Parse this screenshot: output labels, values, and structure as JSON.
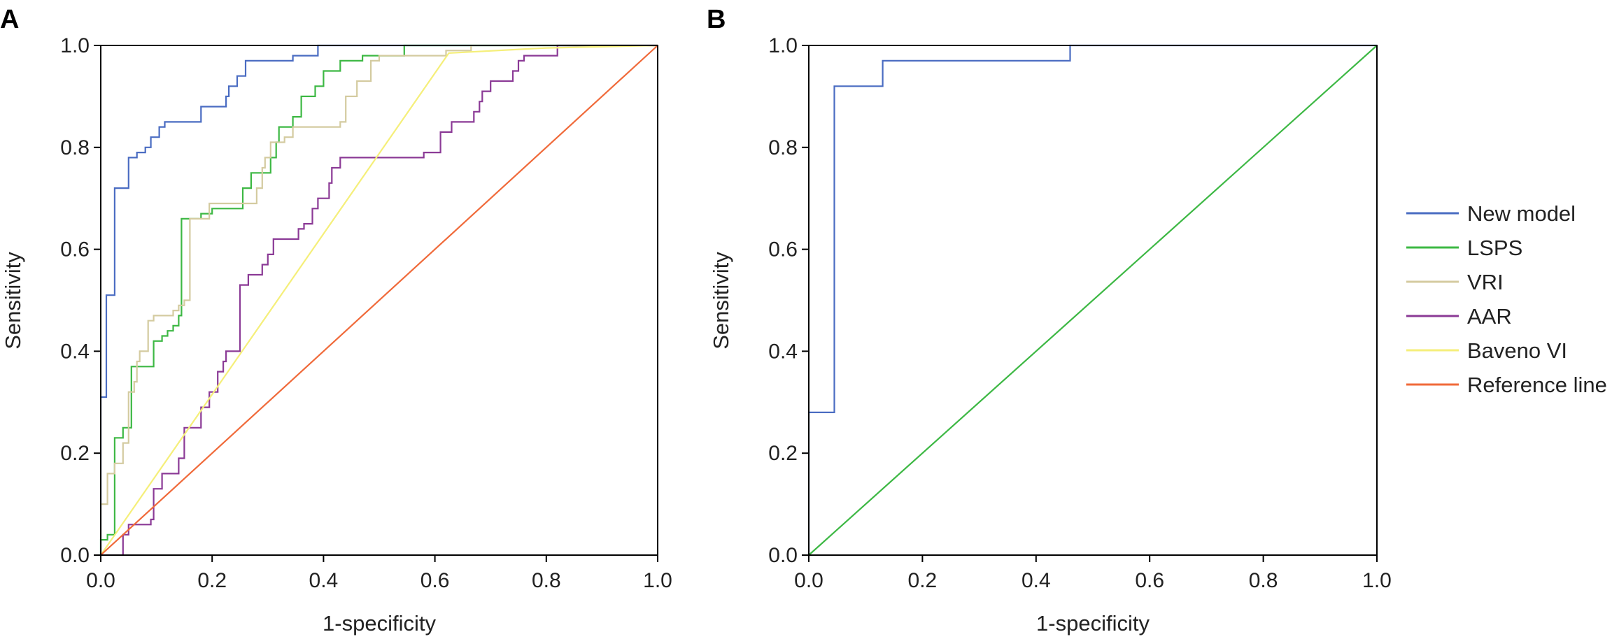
{
  "chart_data": [
    {
      "panel": "A",
      "type": "line",
      "xlabel": "1-specificity",
      "ylabel": "Sensitivity",
      "xlim": [
        0,
        1
      ],
      "ylim": [
        0,
        1
      ],
      "xticks": [
        "0.0",
        "0.2",
        "0.4",
        "0.6",
        "0.8",
        "1.0"
      ],
      "yticks": [
        "0.0",
        "0.2",
        "0.4",
        "0.6",
        "0.8",
        "1.0"
      ],
      "grid": false,
      "series": [
        {
          "name": "New model",
          "color": "#4a6cc2",
          "points": [
            [
              0,
              0
            ],
            [
              0,
              0.31
            ],
            [
              0.01,
              0.31
            ],
            [
              0.01,
              0.51
            ],
            [
              0.025,
              0.51
            ],
            [
              0.025,
              0.72
            ],
            [
              0.05,
              0.72
            ],
            [
              0.05,
              0.78
            ],
            [
              0.065,
              0.78
            ],
            [
              0.065,
              0.79
            ],
            [
              0.08,
              0.79
            ],
            [
              0.08,
              0.8
            ],
            [
              0.09,
              0.8
            ],
            [
              0.09,
              0.82
            ],
            [
              0.105,
              0.82
            ],
            [
              0.105,
              0.84
            ],
            [
              0.115,
              0.84
            ],
            [
              0.115,
              0.85
            ],
            [
              0.18,
              0.85
            ],
            [
              0.18,
              0.88
            ],
            [
              0.225,
              0.88
            ],
            [
              0.225,
              0.9
            ],
            [
              0.23,
              0.9
            ],
            [
              0.23,
              0.92
            ],
            [
              0.245,
              0.92
            ],
            [
              0.245,
              0.94
            ],
            [
              0.26,
              0.94
            ],
            [
              0.26,
              0.97
            ],
            [
              0.345,
              0.97
            ],
            [
              0.345,
              0.98
            ],
            [
              0.39,
              0.98
            ],
            [
              0.39,
              1.0
            ],
            [
              1.0,
              1.0
            ]
          ]
        },
        {
          "name": "LSPS",
          "color": "#3db844",
          "points": [
            [
              0,
              0
            ],
            [
              0,
              0.03
            ],
            [
              0.012,
              0.03
            ],
            [
              0.012,
              0.04
            ],
            [
              0.025,
              0.04
            ],
            [
              0.025,
              0.23
            ],
            [
              0.04,
              0.23
            ],
            [
              0.04,
              0.25
            ],
            [
              0.055,
              0.25
            ],
            [
              0.055,
              0.37
            ],
            [
              0.095,
              0.37
            ],
            [
              0.095,
              0.42
            ],
            [
              0.11,
              0.42
            ],
            [
              0.11,
              0.43
            ],
            [
              0.12,
              0.43
            ],
            [
              0.12,
              0.44
            ],
            [
              0.13,
              0.44
            ],
            [
              0.13,
              0.45
            ],
            [
              0.14,
              0.45
            ],
            [
              0.14,
              0.47
            ],
            [
              0.145,
              0.47
            ],
            [
              0.145,
              0.66
            ],
            [
              0.18,
              0.66
            ],
            [
              0.18,
              0.67
            ],
            [
              0.2,
              0.67
            ],
            [
              0.2,
              0.68
            ],
            [
              0.255,
              0.68
            ],
            [
              0.255,
              0.72
            ],
            [
              0.27,
              0.72
            ],
            [
              0.27,
              0.75
            ],
            [
              0.305,
              0.75
            ],
            [
              0.305,
              0.78
            ],
            [
              0.315,
              0.78
            ],
            [
              0.315,
              0.81
            ],
            [
              0.32,
              0.81
            ],
            [
              0.32,
              0.84
            ],
            [
              0.345,
              0.84
            ],
            [
              0.345,
              0.86
            ],
            [
              0.36,
              0.86
            ],
            [
              0.36,
              0.9
            ],
            [
              0.385,
              0.9
            ],
            [
              0.385,
              0.92
            ],
            [
              0.4,
              0.92
            ],
            [
              0.4,
              0.95
            ],
            [
              0.43,
              0.95
            ],
            [
              0.43,
              0.97
            ],
            [
              0.47,
              0.97
            ],
            [
              0.47,
              0.98
            ],
            [
              0.545,
              0.98
            ],
            [
              0.545,
              1.0
            ],
            [
              1.0,
              1.0
            ]
          ]
        },
        {
          "name": "VRI",
          "color": "#d4cba0",
          "points": [
            [
              0,
              0
            ],
            [
              0,
              0.1
            ],
            [
              0.012,
              0.1
            ],
            [
              0.012,
              0.16
            ],
            [
              0.025,
              0.16
            ],
            [
              0.025,
              0.18
            ],
            [
              0.04,
              0.18
            ],
            [
              0.04,
              0.22
            ],
            [
              0.05,
              0.22
            ],
            [
              0.05,
              0.32
            ],
            [
              0.06,
              0.32
            ],
            [
              0.06,
              0.34
            ],
            [
              0.065,
              0.34
            ],
            [
              0.065,
              0.38
            ],
            [
              0.07,
              0.38
            ],
            [
              0.07,
              0.4
            ],
            [
              0.085,
              0.4
            ],
            [
              0.085,
              0.46
            ],
            [
              0.095,
              0.46
            ],
            [
              0.095,
              0.47
            ],
            [
              0.13,
              0.47
            ],
            [
              0.13,
              0.48
            ],
            [
              0.14,
              0.48
            ],
            [
              0.14,
              0.49
            ],
            [
              0.15,
              0.49
            ],
            [
              0.15,
              0.5
            ],
            [
              0.16,
              0.5
            ],
            [
              0.16,
              0.66
            ],
            [
              0.195,
              0.66
            ],
            [
              0.195,
              0.69
            ],
            [
              0.28,
              0.69
            ],
            [
              0.28,
              0.72
            ],
            [
              0.29,
              0.72
            ],
            [
              0.29,
              0.76
            ],
            [
              0.295,
              0.76
            ],
            [
              0.295,
              0.78
            ],
            [
              0.305,
              0.78
            ],
            [
              0.305,
              0.81
            ],
            [
              0.33,
              0.81
            ],
            [
              0.33,
              0.82
            ],
            [
              0.345,
              0.82
            ],
            [
              0.345,
              0.84
            ],
            [
              0.43,
              0.84
            ],
            [
              0.43,
              0.85
            ],
            [
              0.44,
              0.85
            ],
            [
              0.44,
              0.9
            ],
            [
              0.46,
              0.9
            ],
            [
              0.46,
              0.93
            ],
            [
              0.485,
              0.93
            ],
            [
              0.485,
              0.97
            ],
            [
              0.5,
              0.97
            ],
            [
              0.5,
              0.98
            ],
            [
              0.62,
              0.98
            ],
            [
              0.62,
              0.99
            ],
            [
              0.665,
              0.99
            ],
            [
              0.665,
              1.0
            ],
            [
              1.0,
              1.0
            ]
          ]
        },
        {
          "name": "AAR",
          "color": "#8b3a96",
          "points": [
            [
              0,
              0
            ],
            [
              0.04,
              0
            ],
            [
              0.04,
              0.04
            ],
            [
              0.05,
              0.04
            ],
            [
              0.05,
              0.06
            ],
            [
              0.09,
              0.06
            ],
            [
              0.09,
              0.07
            ],
            [
              0.095,
              0.07
            ],
            [
              0.095,
              0.13
            ],
            [
              0.11,
              0.13
            ],
            [
              0.11,
              0.16
            ],
            [
              0.14,
              0.16
            ],
            [
              0.14,
              0.19
            ],
            [
              0.15,
              0.19
            ],
            [
              0.15,
              0.25
            ],
            [
              0.18,
              0.25
            ],
            [
              0.18,
              0.29
            ],
            [
              0.195,
              0.29
            ],
            [
              0.195,
              0.32
            ],
            [
              0.21,
              0.32
            ],
            [
              0.21,
              0.36
            ],
            [
              0.22,
              0.36
            ],
            [
              0.22,
              0.38
            ],
            [
              0.225,
              0.38
            ],
            [
              0.225,
              0.4
            ],
            [
              0.25,
              0.4
            ],
            [
              0.25,
              0.53
            ],
            [
              0.265,
              0.53
            ],
            [
              0.265,
              0.55
            ],
            [
              0.29,
              0.55
            ],
            [
              0.29,
              0.57
            ],
            [
              0.3,
              0.57
            ],
            [
              0.3,
              0.59
            ],
            [
              0.31,
              0.59
            ],
            [
              0.31,
              0.62
            ],
            [
              0.355,
              0.62
            ],
            [
              0.355,
              0.64
            ],
            [
              0.365,
              0.64
            ],
            [
              0.365,
              0.65
            ],
            [
              0.38,
              0.65
            ],
            [
              0.38,
              0.68
            ],
            [
              0.39,
              0.68
            ],
            [
              0.39,
              0.7
            ],
            [
              0.41,
              0.7
            ],
            [
              0.41,
              0.73
            ],
            [
              0.415,
              0.73
            ],
            [
              0.415,
              0.76
            ],
            [
              0.43,
              0.76
            ],
            [
              0.43,
              0.78
            ],
            [
              0.58,
              0.78
            ],
            [
              0.58,
              0.79
            ],
            [
              0.61,
              0.79
            ],
            [
              0.61,
              0.83
            ],
            [
              0.63,
              0.83
            ],
            [
              0.63,
              0.85
            ],
            [
              0.67,
              0.85
            ],
            [
              0.67,
              0.87
            ],
            [
              0.68,
              0.87
            ],
            [
              0.68,
              0.89
            ],
            [
              0.685,
              0.89
            ],
            [
              0.685,
              0.91
            ],
            [
              0.7,
              0.91
            ],
            [
              0.7,
              0.93
            ],
            [
              0.74,
              0.93
            ],
            [
              0.74,
              0.95
            ],
            [
              0.75,
              0.95
            ],
            [
              0.75,
              0.97
            ],
            [
              0.76,
              0.97
            ],
            [
              0.76,
              0.98
            ],
            [
              0.82,
              0.98
            ],
            [
              0.82,
              1.0
            ],
            [
              1.0,
              1.0
            ]
          ]
        },
        {
          "name": "Baveno VI",
          "color": "#f5ef7a",
          "points": [
            [
              0,
              0
            ],
            [
              0.625,
              0.985
            ],
            [
              0.8,
              0.995
            ],
            [
              1.0,
              1.0
            ]
          ]
        },
        {
          "name": "Reference line",
          "color": "#f06a3a",
          "points": [
            [
              0,
              0
            ],
            [
              1,
              1
            ]
          ]
        }
      ]
    },
    {
      "panel": "B",
      "type": "line",
      "xlabel": "1-specificity",
      "ylabel": "Sensitivity",
      "xlim": [
        0,
        1
      ],
      "ylim": [
        0,
        1
      ],
      "xticks": [
        "0.0",
        "0.2",
        "0.4",
        "0.6",
        "0.8",
        "1.0"
      ],
      "yticks": [
        "0.0",
        "0.2",
        "0.4",
        "0.6",
        "0.8",
        "1.0"
      ],
      "grid": false,
      "series": [
        {
          "color": "#4a6cc2",
          "points": [
            [
              0,
              0
            ],
            [
              0,
              0.28
            ],
            [
              0.045,
              0.28
            ],
            [
              0.045,
              0.92
            ],
            [
              0.13,
              0.92
            ],
            [
              0.13,
              0.97
            ],
            [
              0.46,
              0.97
            ],
            [
              0.46,
              1.0
            ],
            [
              1.0,
              1.0
            ]
          ]
        },
        {
          "color": "#3db844",
          "points": [
            [
              0,
              0
            ],
            [
              1,
              1
            ]
          ]
        }
      ]
    }
  ],
  "legend": {
    "placement": "right",
    "items": [
      {
        "label": "New model",
        "color": "#4a6cc2"
      },
      {
        "label": "LSPS",
        "color": "#3db844"
      },
      {
        "label": "VRI",
        "color": "#d4cba0"
      },
      {
        "label": "AAR",
        "color": "#8b3a96"
      },
      {
        "label": "Baveno VI",
        "color": "#f5ef7a"
      },
      {
        "label": "Reference line",
        "color": "#f06a3a"
      }
    ]
  }
}
